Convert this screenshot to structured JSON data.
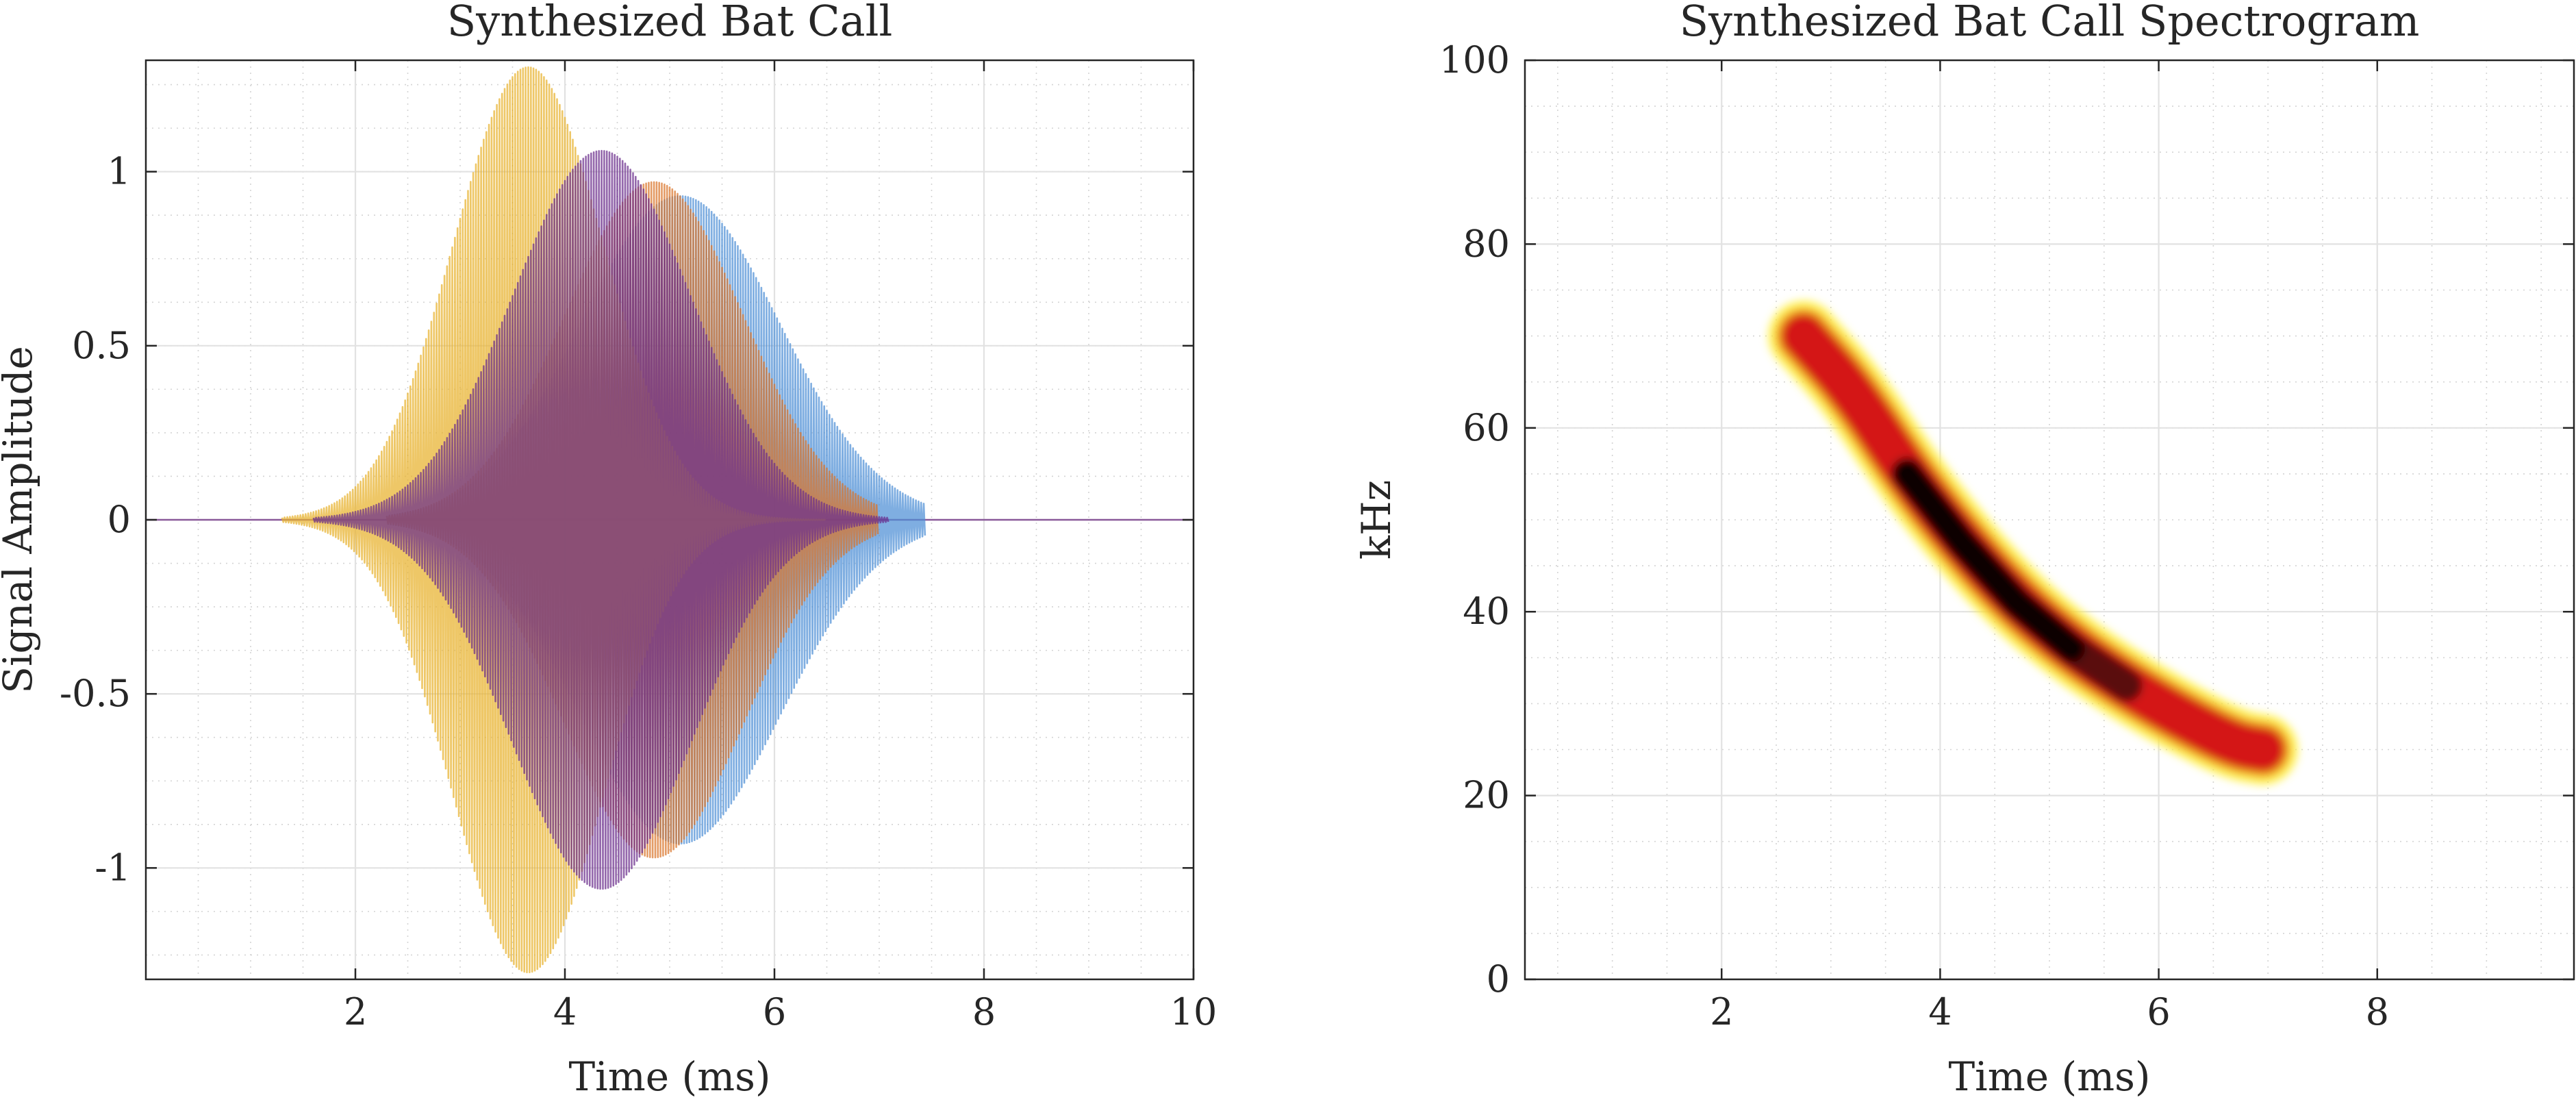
{
  "chart_data": [
    {
      "type": "line",
      "title": "Synthesized Bat Call",
      "xlabel": "Time (ms)",
      "ylabel": "Signal Amplitude",
      "xlim": [
        0,
        10
      ],
      "ylim": [
        -1.32,
        1.32
      ],
      "xticks": [
        2,
        4,
        6,
        8,
        10
      ],
      "xtick_labels": [
        "2",
        "4",
        "6",
        "8",
        "10"
      ],
      "yticks": [
        1,
        0.5,
        0,
        -0.5,
        -1
      ],
      "ytick_labels": [
        "1",
        "0.5",
        "0",
        "-0.5",
        "-1"
      ],
      "grid": true,
      "minor_grid": true,
      "series": [
        {
          "color": "#4d8fd6",
          "envelope_center_ms": 5.1,
          "envelope_width_ms": 0.95,
          "peak_amplitude": 0.93,
          "start_ms": 2.3,
          "end_ms": 7.45
        },
        {
          "color": "#d9752a",
          "envelope_center_ms": 4.85,
          "envelope_width_ms": 0.85,
          "peak_amplitude": 0.97,
          "start_ms": 2.3,
          "end_ms": 7.0
        },
        {
          "color": "#e8b12c",
          "envelope_center_ms": 3.65,
          "envelope_width_ms": 0.72,
          "peak_amplitude": 1.3,
          "start_ms": 1.3,
          "end_ms": 6.5
        },
        {
          "color": "#6b2e8c",
          "envelope_center_ms": 4.35,
          "envelope_width_ms": 0.85,
          "peak_amplitude": 1.06,
          "start_ms": 1.6,
          "end_ms": 7.1
        }
      ]
    },
    {
      "type": "heatmap",
      "title": "Synthesized Bat Call Spectrogram",
      "xlabel": "Time (ms)",
      "ylabel": "kHz",
      "xlim": [
        0.2,
        9.8
      ],
      "ylim": [
        0,
        100
      ],
      "xticks": [
        2,
        4,
        6,
        8
      ],
      "xtick_labels": [
        "2",
        "4",
        "6",
        "8"
      ],
      "yticks": [
        0,
        20,
        40,
        60,
        80,
        100
      ],
      "ytick_labels": [
        "0",
        "20",
        "40",
        "60",
        "80",
        "100"
      ],
      "grid": true,
      "minor_grid": true,
      "colormap": "hot (inverted)",
      "sweep": {
        "time_ms": [
          2.75,
          3.2,
          3.7,
          4.2,
          4.7,
          5.2,
          5.7,
          6.2,
          6.7,
          6.95
        ],
        "freq_khz": [
          70,
          64,
          55,
          47.5,
          41,
          36,
          32,
          28.5,
          25.5,
          25
        ],
        "peak_time_ms": 4.4
      }
    }
  ]
}
